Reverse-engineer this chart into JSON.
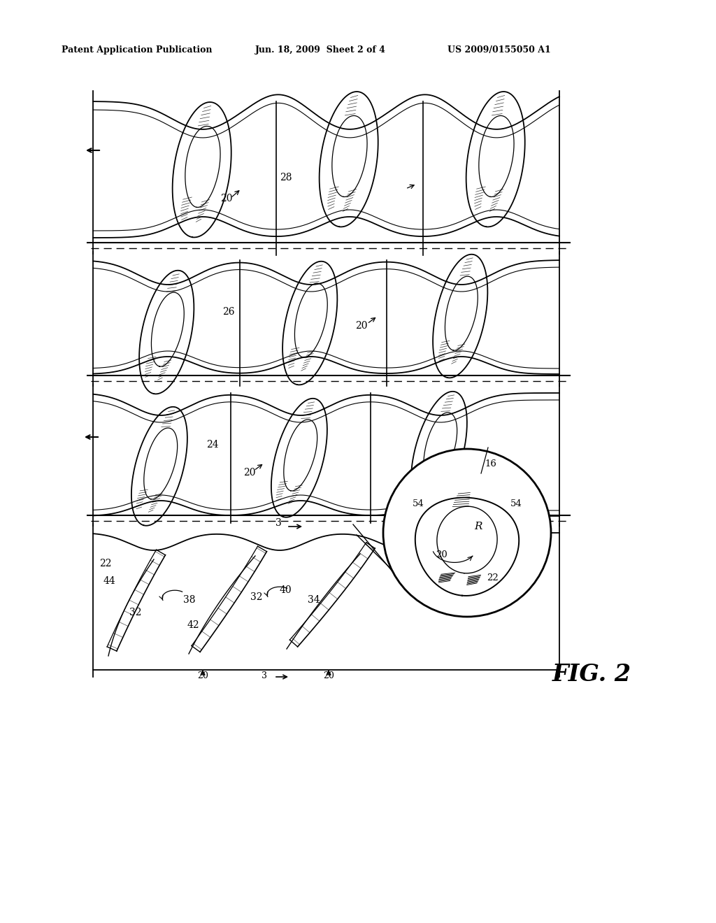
{
  "bg_color": "#ffffff",
  "header_left": "Patent Application Publication",
  "header_mid": "Jun. 18, 2009  Sheet 2 of 4",
  "header_right": "US 2009/0155050 A1",
  "fig_label": "FIG. 2"
}
